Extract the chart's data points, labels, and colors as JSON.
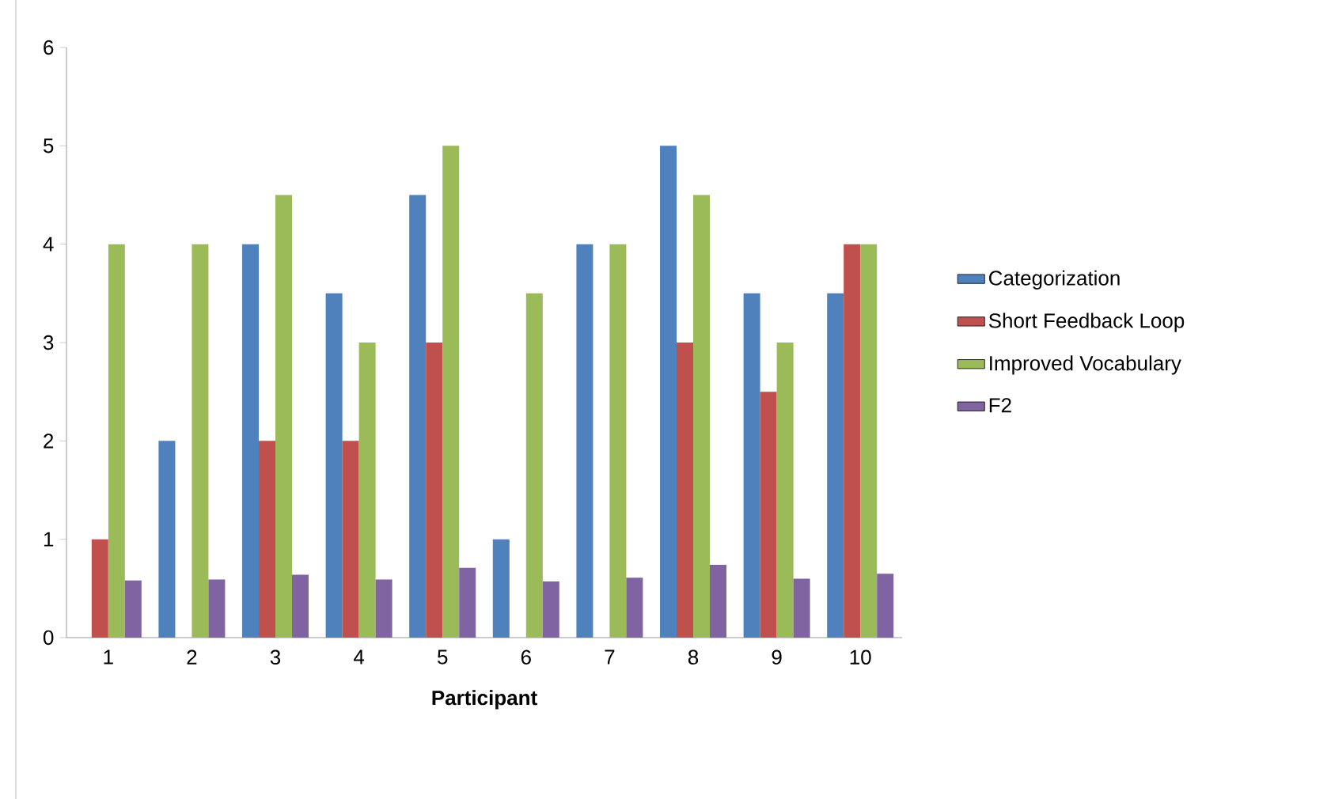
{
  "chart_data": {
    "type": "bar",
    "xlabel": "Participant",
    "categories": [
      "1",
      "2",
      "3",
      "4",
      "5",
      "6",
      "7",
      "8",
      "9",
      "10"
    ],
    "series": [
      {
        "name": "Categorization",
        "color": "#4f81bd",
        "values": [
          0,
          2,
          4,
          3.5,
          4.5,
          1,
          4,
          5,
          3.5,
          3.5
        ]
      },
      {
        "name": "Short Feedback Loop",
        "color": "#c0504d",
        "values": [
          1,
          0,
          2,
          2,
          3,
          0,
          0,
          3,
          2.5,
          4
        ]
      },
      {
        "name": "Improved Vocabulary",
        "color": "#9bbb59",
        "values": [
          4,
          4,
          4.5,
          3,
          5,
          3.5,
          4,
          4.5,
          3,
          4
        ]
      },
      {
        "name": "F2",
        "color": "#8064a2",
        "values": [
          0.58,
          0.59,
          0.64,
          0.59,
          0.71,
          0.57,
          0.61,
          0.74,
          0.6,
          0.65
        ]
      }
    ],
    "ylim": [
      0,
      6
    ],
    "yticks": [
      0,
      1,
      2,
      3,
      4,
      5,
      6
    ],
    "grid": false,
    "legend": "right"
  }
}
